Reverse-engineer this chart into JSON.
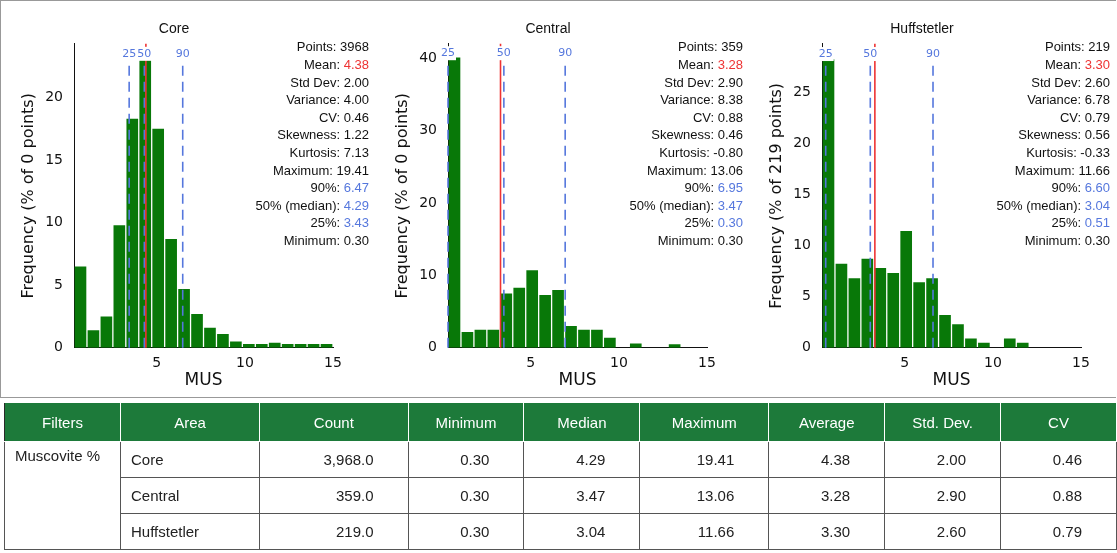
{
  "chart_data": [
    {
      "type": "histogram",
      "title": "Core",
      "xlabel": "MUS",
      "ylabel": "Frequency (% of 0 points)",
      "color": "#087808",
      "bins": [
        0.3,
        1.035,
        1.77,
        2.505,
        3.24,
        3.975,
        4.71,
        5.445,
        6.18,
        6.915,
        7.65,
        8.385,
        9.12,
        9.855,
        10.59,
        11.325,
        12.06,
        12.795,
        13.53,
        14.265,
        15
      ],
      "values": [
        6.5,
        1.4,
        2.5,
        9.8,
        18.3,
        23.2,
        17.5,
        8.7,
        4.7,
        2.7,
        1.6,
        1.1,
        0.5,
        0.3,
        0.3,
        0.4,
        0.3,
        0.3,
        0.3,
        0.3
      ],
      "xlim": [
        0.3,
        15
      ],
      "xticks": [
        5,
        10,
        15
      ],
      "ylim": [
        0,
        24.3
      ],
      "yticks": [
        0,
        5,
        10,
        15,
        20
      ],
      "grid": false,
      "legend": false,
      "ref_lines": [
        {
          "axis": "x",
          "value": 3.43,
          "color": "#5577dd",
          "line_style": "dashed"
        },
        {
          "axis": "x",
          "value": 4.29,
          "color": "#5577dd",
          "line_style": "dashed"
        },
        {
          "axis": "x",
          "value": 4.38,
          "color": "#ee3333",
          "line_style": "solid"
        },
        {
          "axis": "x",
          "value": 6.47,
          "color": "#5577dd",
          "line_style": "dashed"
        }
      ],
      "annotations": [
        {
          "text": "25",
          "x": 3.43,
          "y": 23.5
        },
        {
          "text": "50",
          "x": 4.29,
          "y": 23.5
        },
        {
          "text": "90",
          "x": 6.47,
          "y": 23.5
        },
        "Points: 3968",
        "Mean: 4.38",
        "Std Dev: 2.00",
        "Variance: 4.00",
        "CV: 0.46",
        "Skewness: 1.22",
        "Kurtosis: 7.13",
        "Maximum: 19.41",
        "90%: 6.47",
        "50% (median): 4.29",
        "25%: 3.43",
        "Minimum: 0.30"
      ]
    },
    {
      "type": "histogram",
      "title": "Central",
      "xlabel": "MUS",
      "ylabel": "Frequency (% of 0 points)",
      "color": "#087808",
      "bins": [
        0.3,
        1.035,
        1.77,
        2.505,
        3.24,
        3.975,
        4.71,
        5.445,
        6.18,
        6.915,
        7.65,
        8.385,
        9.12,
        9.855,
        10.59,
        11.325,
        12.06,
        12.795,
        13.53,
        14.265,
        15
      ],
      "values": [
        40.1,
        2.2,
        2.5,
        2.5,
        7.5,
        8.3,
        10.7,
        7.3,
        8.0,
        3.0,
        2.5,
        2.5,
        1.4,
        0,
        0.6,
        0,
        0,
        0.5,
        0,
        0
      ],
      "xlim": [
        0.3,
        15
      ],
      "xticks": [
        5,
        10,
        15
      ],
      "ylim": [
        0,
        42
      ],
      "yticks": [
        0,
        10,
        20,
        30,
        40
      ],
      "grid": false,
      "legend": false,
      "ref_lines": [
        {
          "axis": "x",
          "value": 0.3,
          "color": "#5577dd",
          "line_style": "dashed"
        },
        {
          "axis": "x",
          "value": 3.28,
          "color": "#ee3333",
          "line_style": "solid"
        },
        {
          "axis": "x",
          "value": 3.47,
          "color": "#5577dd",
          "line_style": "dashed"
        },
        {
          "axis": "x",
          "value": 6.95,
          "color": "#5577dd",
          "line_style": "dashed"
        }
      ],
      "annotations": [
        {
          "text": "25",
          "x": 0.3,
          "y": 40.7
        },
        {
          "text": "50",
          "x": 3.47,
          "y": 40.7
        },
        {
          "text": "90",
          "x": 6.95,
          "y": 40.7
        },
        "Points: 359",
        "Mean: 3.28",
        "Std Dev: 2.90",
        "Variance: 8.38",
        "CV: 0.88",
        "Skewness: 0.46",
        "Kurtosis: -0.80",
        "Maximum: 13.06",
        "90%: 6.95",
        "50% (median): 3.47",
        "25%: 0.30",
        "Minimum: 0.30"
      ]
    },
    {
      "type": "histogram",
      "title": "Huffstetler",
      "xlabel": "MUS",
      "ylabel": "Frequency (% of 219 points)",
      "color": "#087808",
      "bins": [
        0.3,
        1.035,
        1.77,
        2.505,
        3.24,
        3.975,
        4.71,
        5.445,
        6.18,
        6.915,
        7.65,
        8.385,
        9.12,
        9.855,
        10.59,
        11.325,
        12.06,
        12.795,
        13.53,
        14.265,
        15
      ],
      "values": [
        28.2,
        8.2,
        6.8,
        8.7,
        7.8,
        7.3,
        11.4,
        6.4,
        6.8,
        3.2,
        2.3,
        0.9,
        0.5,
        0,
        0.9,
        0.5,
        0,
        0,
        0,
        0
      ],
      "xlim": [
        0.3,
        15
      ],
      "xticks": [
        5,
        10,
        15
      ],
      "ylim": [
        0,
        29.7
      ],
      "yticks": [
        0,
        5,
        10,
        15,
        20,
        25
      ],
      "grid": false,
      "legend": false,
      "ref_lines": [
        {
          "axis": "x",
          "value": 0.51,
          "color": "#5577dd",
          "line_style": "dashed"
        },
        {
          "axis": "x",
          "value": 3.04,
          "color": "#5577dd",
          "line_style": "dashed"
        },
        {
          "axis": "x",
          "value": 3.3,
          "color": "#ee3333",
          "line_style": "solid"
        },
        {
          "axis": "x",
          "value": 6.6,
          "color": "#5577dd",
          "line_style": "dashed"
        }
      ],
      "annotations": [
        {
          "text": "25",
          "x": 0.51,
          "y": 28.7
        },
        {
          "text": "50",
          "x": 3.04,
          "y": 28.7
        },
        {
          "text": "90",
          "x": 6.6,
          "y": 28.7
        },
        "Points: 219",
        "Mean: 3.30",
        "Std Dev: 2.60",
        "Variance: 6.78",
        "CV: 0.79",
        "Skewness: 0.56",
        "Kurtosis: -0.33",
        "Maximum: 11.66",
        "90%: 6.60",
        "50% (median): 3.04",
        "25%: 0.51",
        "Minimum: 0.30"
      ]
    },
    {
      "type": "other",
      "annotations": [
        "Filters",
        "Area",
        "Count",
        "Minimum",
        "Median",
        "Maximum",
        "Average",
        "Std. Dev.",
        "CV",
        "Muscovite %",
        "Core",
        "3,968.0",
        "0.30",
        "4.29",
        "19.41",
        "4.38",
        "2.00",
        "0.46",
        "Central",
        "359.0",
        "0.30",
        "3.47",
        "13.06",
        "3.28",
        "2.90",
        "0.88",
        "Huffstetler",
        "219.0",
        "0.30",
        "3.04",
        "11.66",
        "3.30",
        "2.60",
        "0.79"
      ]
    }
  ]
}
